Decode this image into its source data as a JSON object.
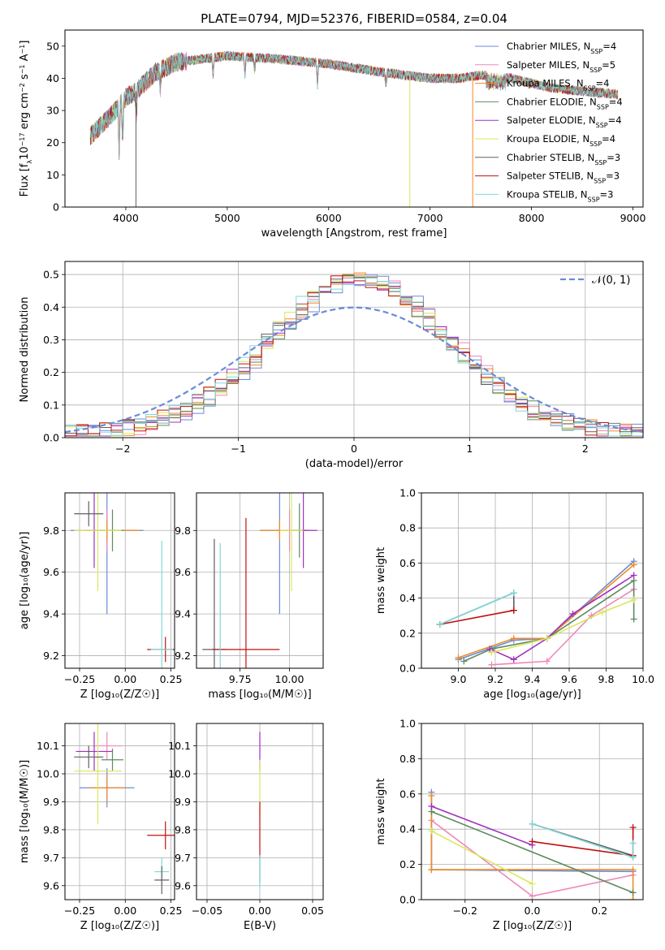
{
  "colors": {
    "chabrier_miles": "#6a8bd8",
    "salpeter_miles": "#ee88b8",
    "kroupa_miles": "#f08a26",
    "chabrier_elodie": "#5f8a5f",
    "salpeter_elodie": "#a030c0",
    "kroupa_elodie": "#d8e85a",
    "chabrier_stelib": "#606060",
    "salpeter_stelib": "#c01010",
    "kroupa_stelib": "#80d8d8",
    "normal_curve": "#6a8bd8"
  },
  "chart_data": [
    {
      "id": "spectrum",
      "type": "line",
      "title": "PLATE=0794, MJD=52376, FIBERID=0584, z=0.04",
      "xlabel": "wavelength [Angstrom, rest frame]",
      "ylabel_prefix": "Flux [f",
      "ylabel_sub": "λ",
      "ylabel_rest": "10",
      "ylabel_exp": "−17",
      "ylabel_end": " erg cm",
      "ylabel_exp2": "−2",
      "ylabel_s": " s",
      "ylabel_exp3": "−1",
      "ylabel_a": " A",
      "ylabel_exp4": "−1",
      "ylabel_close": "]",
      "xlim": [
        3400,
        9100
      ],
      "ylim": [
        0,
        55
      ],
      "xticks": [
        4000,
        5000,
        6000,
        7000,
        8000,
        9000
      ],
      "yticks": [
        0,
        10,
        20,
        30,
        40,
        50
      ],
      "grid": false,
      "legend_position": "top-right",
      "continuum_points": [
        [
          3650,
          22
        ],
        [
          3900,
          30
        ],
        [
          4000,
          34
        ],
        [
          4100,
          36
        ],
        [
          4300,
          42
        ],
        [
          4500,
          45
        ],
        [
          5000,
          47
        ],
        [
          5500,
          46
        ],
        [
          6000,
          44.5
        ],
        [
          6500,
          42
        ],
        [
          7000,
          40
        ],
        [
          7300,
          40
        ],
        [
          7500,
          41
        ],
        [
          7800,
          40
        ],
        [
          8200,
          37
        ],
        [
          8500,
          36
        ],
        [
          8850,
          35
        ]
      ],
      "series": [
        {
          "key": "chabrier_miles",
          "name_main": "Chabrier MILES, N",
          "name_sub": "SSP",
          "name_end": "=4"
        },
        {
          "key": "salpeter_miles",
          "name_main": "Salpeter MILES, N",
          "name_sub": "SSP",
          "name_end": "=5"
        },
        {
          "key": "kroupa_miles",
          "name_main": "Kroupa MILES, N",
          "name_sub": "SSP",
          "name_end": "=4"
        },
        {
          "key": "chabrier_elodie",
          "name_main": "Chabrier ELODIE, N",
          "name_sub": "SSP",
          "name_end": "=4"
        },
        {
          "key": "salpeter_elodie",
          "name_main": "Salpeter ELODIE, N",
          "name_sub": "SSP",
          "name_end": "=4"
        },
        {
          "key": "kroupa_elodie",
          "name_main": "Kroupa ELODIE, N",
          "name_sub": "SSP",
          "name_end": "=4"
        },
        {
          "key": "chabrier_stelib",
          "name_main": "Chabrier STELIB, N",
          "name_sub": "SSP",
          "name_end": "=3"
        },
        {
          "key": "salpeter_stelib",
          "name_main": "Salpeter STELIB, N",
          "name_sub": "SSP",
          "name_end": "=3"
        },
        {
          "key": "kroupa_stelib",
          "name_main": "Kroupa STELIB, N",
          "name_sub": "SSP",
          "name_end": "=3"
        }
      ]
    },
    {
      "id": "residuals",
      "type": "bar",
      "xlabel": "(data-model)/error",
      "ylabel": "Normed distribution",
      "xlim": [
        -2.5,
        2.5
      ],
      "ylim": [
        0,
        0.54
      ],
      "xticks": [
        -2,
        -1,
        0,
        1,
        2
      ],
      "yticks": [
        0.0,
        0.1,
        0.2,
        0.3,
        0.4,
        0.5
      ],
      "grid": true,
      "legend_position": "top-right",
      "legend_label": "𝒩(0, 1)",
      "bin_width": 0.1,
      "histogram_peak": 0.47
    },
    {
      "id": "age_vs_Z",
      "type": "scatter",
      "xlabel": "Z [log₁₀(Z/Z☉)]",
      "ylabel": "age  [log₁₀(age/yr)]",
      "xlim": [
        -0.33,
        0.27
      ],
      "ylim": [
        9.14,
        9.98
      ],
      "xticks": [
        -0.25,
        0.0,
        0.25
      ],
      "yticks": [
        9.2,
        9.4,
        9.6,
        9.8
      ],
      "grid": true,
      "points": [
        {
          "key": "chabrier_miles",
          "x": -0.1,
          "y": 9.8,
          "xerr": 0.2,
          "yerr": 0.4
        },
        {
          "key": "salpeter_miles",
          "x": -0.1,
          "y": 9.8,
          "xerr": 0.05,
          "yerr": 0.1
        },
        {
          "key": "kroupa_miles",
          "x": -0.1,
          "y": 9.8,
          "xerr": 0.18,
          "yerr": 0.05
        },
        {
          "key": "chabrier_elodie",
          "x": -0.07,
          "y": 9.8,
          "xerr": 0.06,
          "yerr": 0.1
        },
        {
          "key": "salpeter_elodie",
          "x": -0.17,
          "y": 9.8,
          "xerr": 0.05,
          "yerr": 0.18
        },
        {
          "key": "kroupa_elodie",
          "x": -0.15,
          "y": 9.8,
          "xerr": 0.13,
          "yerr": 0.29
        },
        {
          "key": "chabrier_stelib",
          "x": -0.2,
          "y": 9.88,
          "xerr": 0.08,
          "yerr": 0.06
        },
        {
          "key": "salpeter_stelib",
          "x": 0.22,
          "y": 9.23,
          "xerr": 0.1,
          "yerr": 0.06
        },
        {
          "key": "kroupa_stelib",
          "x": 0.2,
          "y": 9.23,
          "xerr": 0.06,
          "yerr": 0.52
        }
      ]
    },
    {
      "id": "age_vs_mass",
      "type": "scatter",
      "xlabel": "mass [log₁₀(M/M☉)]",
      "ylabel": "",
      "xlim": [
        9.53,
        10.17
      ],
      "ylim": [
        9.14,
        9.98
      ],
      "xticks": [
        9.75,
        10.0
      ],
      "yticks": [
        9.2,
        9.4,
        9.6,
        9.8
      ],
      "grid": true,
      "points": [
        {
          "key": "chabrier_miles",
          "x": 9.95,
          "y": 9.8,
          "xerr": 0.1,
          "yerr": 0.4
        },
        {
          "key": "salpeter_miles",
          "x": 10.0,
          "y": 9.8,
          "xerr": 0.05,
          "yerr": 0.1
        },
        {
          "key": "kroupa_miles",
          "x": 9.95,
          "y": 9.8,
          "xerr": 0.1,
          "yerr": 0.05
        },
        {
          "key": "chabrier_elodie",
          "x": 10.05,
          "y": 9.8,
          "xerr": 0.04,
          "yerr": 0.13
        },
        {
          "key": "salpeter_elodie",
          "x": 10.07,
          "y": 9.8,
          "xerr": 0.07,
          "yerr": 0.18
        },
        {
          "key": "kroupa_elodie",
          "x": 10.01,
          "y": 9.8,
          "xerr": 0.06,
          "yerr": 0.29
        },
        {
          "key": "chabrier_stelib",
          "x": 9.62,
          "y": 9.23,
          "xerr": 0.06,
          "yerr": 0.53
        },
        {
          "key": "salpeter_stelib",
          "x": 9.78,
          "y": 9.23,
          "xerr": 0.17,
          "yerr": 0.63
        },
        {
          "key": "kroupa_stelib",
          "x": 9.65,
          "y": 9.23,
          "xerr": 0.0,
          "yerr": 0.51
        }
      ]
    },
    {
      "id": "weight_vs_age",
      "type": "line",
      "xlabel": "age  [log₁₀(age/yr)]",
      "ylabel": "mass weight",
      "xlim": [
        8.8,
        10.0
      ],
      "ylim": [
        0,
        1
      ],
      "xticks": [
        9.0,
        9.2,
        9.4,
        9.6,
        9.8,
        10.0
      ],
      "yticks": [
        0.0,
        0.2,
        0.4,
        0.6,
        0.8,
        1.0
      ],
      "grid": true,
      "series": [
        {
          "key": "chabrier_miles",
          "x": [
            9.0,
            9.3,
            9.48,
            9.95
          ],
          "y": [
            0.05,
            0.16,
            0.17,
            0.61
          ]
        },
        {
          "key": "salpeter_miles",
          "x": [
            9.18,
            9.48,
            9.72,
            9.95
          ],
          "y": [
            0.02,
            0.04,
            0.3,
            0.45
          ]
        },
        {
          "key": "kroupa_miles",
          "x": [
            9.0,
            9.3,
            9.48,
            9.95
          ],
          "y": [
            0.06,
            0.17,
            0.17,
            0.59
          ]
        },
        {
          "key": "chabrier_elodie",
          "x": [
            9.03,
            9.18,
            9.48,
            9.95,
            9.95
          ],
          "y": [
            0.04,
            0.11,
            0.17,
            0.5,
            0.28
          ]
        },
        {
          "key": "salpeter_elodie",
          "x": [
            9.17,
            9.3,
            9.48,
            9.62,
            9.95
          ],
          "y": [
            0.11,
            0.05,
            0.17,
            0.31,
            0.53
          ]
        },
        {
          "key": "kroupa_elodie",
          "x": [
            9.18,
            9.48,
            9.78,
            9.95
          ],
          "y": [
            0.09,
            0.17,
            0.32,
            0.39
          ]
        },
        {
          "key": "chabrier_stelib",
          "x": [
            8.9,
            9.3,
            9.3
          ],
          "y": [
            0.25,
            0.43,
            0.33
          ]
        },
        {
          "key": "salpeter_stelib",
          "x": [
            8.9,
            9.3
          ],
          "y": [
            0.25,
            0.33
          ]
        },
        {
          "key": "kroupa_stelib",
          "x": [
            8.9,
            9.3
          ],
          "y": [
            0.25,
            0.43
          ]
        }
      ]
    },
    {
      "id": "mass_vs_Z",
      "type": "scatter",
      "xlabel": "Z [log₁₀(Z/Z☉)]",
      "ylabel": "mass [log₁₀(M/M☉)]",
      "xlim": [
        -0.33,
        0.27
      ],
      "ylim": [
        9.55,
        10.18
      ],
      "xticks": [
        -0.25,
        0.0,
        0.25
      ],
      "yticks": [
        9.6,
        9.7,
        9.8,
        9.9,
        10.0,
        10.1
      ],
      "grid": true,
      "points": [
        {
          "key": "chabrier_miles",
          "x": -0.1,
          "y": 9.95,
          "xerr": 0.15,
          "yerr": 0.07
        },
        {
          "key": "salpeter_miles",
          "x": -0.1,
          "y": 10.1,
          "xerr": 0.08,
          "yerr": 0.05
        },
        {
          "key": "kroupa_miles",
          "x": -0.1,
          "y": 9.95,
          "xerr": 0.1,
          "yerr": 0.05
        },
        {
          "key": "chabrier_elodie",
          "x": -0.07,
          "y": 10.05,
          "xerr": 0.06,
          "yerr": 0.04
        },
        {
          "key": "salpeter_elodie",
          "x": -0.17,
          "y": 10.08,
          "xerr": 0.1,
          "yerr": 0.07
        },
        {
          "key": "kroupa_elodie",
          "x": -0.15,
          "y": 10.01,
          "xerr": 0.13,
          "yerr": 0.19
        },
        {
          "key": "chabrier_stelib",
          "x": -0.2,
          "y": 10.06,
          "xerr": 0.08,
          "yerr": 0.04
        },
        {
          "key": "salpeter_stelib",
          "x": 0.22,
          "y": 9.78,
          "xerr": 0.1,
          "yerr": 0.05
        },
        {
          "key": "kroupa_stelib",
          "x": 0.2,
          "y": 9.65,
          "xerr": 0.04,
          "yerr": 0.05
        },
        {
          "key": "chabrier_stelib",
          "x": 0.2,
          "y": 9.62,
          "xerr": 0.04,
          "yerr": 0.05
        }
      ]
    },
    {
      "id": "mass_vs_ebv",
      "type": "scatter",
      "xlabel": "E(B-V)",
      "ylabel": "",
      "xlim": [
        -0.06,
        0.06
      ],
      "ylim": [
        9.55,
        10.18
      ],
      "xticks": [
        -0.05,
        0.0,
        0.05
      ],
      "yticks": [
        9.6,
        9.7,
        9.8,
        9.9,
        10.0,
        10.1
      ],
      "grid": true,
      "points": [
        {
          "key": "salpeter_elodie",
          "x": 0.0,
          "y": 10.08,
          "yerr": 0.07
        },
        {
          "key": "kroupa_elodie",
          "x": 0.0,
          "y": 9.95,
          "yerr": 0.1
        },
        {
          "key": "salpeter_stelib",
          "x": 0.0,
          "y": 9.8,
          "yerr": 0.1
        },
        {
          "key": "chabrier_stelib",
          "x": 0.0,
          "y": 9.66,
          "yerr": 0.05
        },
        {
          "key": "kroupa_stelib",
          "x": 0.0,
          "y": 9.65,
          "yerr": 0.06
        }
      ]
    },
    {
      "id": "weight_vs_Z",
      "type": "line",
      "xlabel": "Z [log₁₀(Z/Z☉)]",
      "ylabel": "mass weight",
      "xlim": [
        -0.33,
        0.33
      ],
      "ylim": [
        0,
        1
      ],
      "xticks": [
        -0.2,
        0.0,
        0.2
      ],
      "yticks": [
        0.0,
        0.2,
        0.4,
        0.6,
        0.8,
        1.0
      ],
      "grid": true,
      "series": [
        {
          "key": "chabrier_miles",
          "x": [
            -0.3,
            -0.3,
            0.3
          ],
          "y": [
            0.61,
            0.17,
            0.16
          ]
        },
        {
          "key": "salpeter_miles",
          "x": [
            -0.3,
            0.0,
            0.3
          ],
          "y": [
            0.45,
            0.02,
            0.14
          ]
        },
        {
          "key": "kroupa_miles",
          "x": [
            -0.3,
            -0.3,
            0.3,
            0.3
          ],
          "y": [
            0.59,
            0.17,
            0.17,
            0.0
          ]
        },
        {
          "key": "chabrier_elodie",
          "x": [
            -0.3,
            0.3
          ],
          "y": [
            0.5,
            0.04
          ]
        },
        {
          "key": "salpeter_elodie",
          "x": [
            -0.3,
            0.0
          ],
          "y": [
            0.53,
            0.31
          ]
        },
        {
          "key": "kroupa_elodie",
          "x": [
            -0.3,
            0.0
          ],
          "y": [
            0.39,
            0.09
          ]
        },
        {
          "key": "chabrier_stelib",
          "x": [
            0.0,
            0.3
          ],
          "y": [
            0.43,
            0.25
          ]
        },
        {
          "key": "salpeter_stelib",
          "x": [
            0.0,
            0.3,
            0.3
          ],
          "y": [
            0.33,
            0.25,
            0.41
          ]
        },
        {
          "key": "kroupa_stelib",
          "x": [
            0.0,
            0.3,
            0.3
          ],
          "y": [
            0.43,
            0.24,
            0.32
          ]
        }
      ]
    }
  ]
}
